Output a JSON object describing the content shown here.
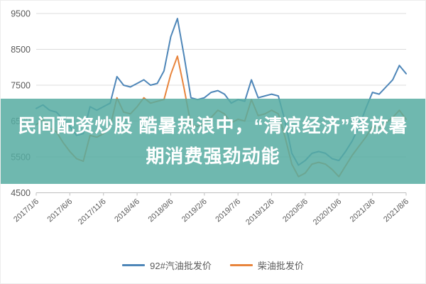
{
  "overlay": {
    "full_text": "民间配资炒股 酷暑热浪中，“清凉经济”释放暑期消费强劲动能",
    "lines": [
      "民间配资炒股 酷暑热浪中，“清凉经济”释放暑",
      "期消费强劲动能"
    ],
    "band_color": "rgba(86,172,161,0.85)",
    "text_color": "#ffffff"
  },
  "chart_data": {
    "type": "line",
    "title": "",
    "grid": true,
    "legend_position": "bottom",
    "ylim": [
      4500,
      9500
    ],
    "y_ticks": [
      4500,
      5500,
      6500,
      7500,
      8500,
      9500
    ],
    "x_tick_labels": [
      "2017/1/6",
      "2017/6/6",
      "2017/11/6",
      "2018/4/6",
      "2018/9/6",
      "2019/2/6",
      "2019/7/6",
      "2019/12/6",
      "2020/5/6",
      "2020/10/6",
      "2021/3/6",
      "2021/8/6"
    ],
    "months_per_point": 1,
    "axis_color": "#bfbfbf",
    "gridline_color": "#dcdcdc",
    "tick_label_color": "#595959",
    "series": [
      {
        "name": "92#汽油批发价",
        "color": "#4e86b8",
        "values": [
          6850,
          6950,
          6800,
          6750,
          6550,
          6350,
          6100,
          6150,
          6900,
          6800,
          6900,
          7000,
          7740,
          7500,
          7450,
          7550,
          7650,
          7500,
          7550,
          7900,
          8850,
          9360,
          8300,
          7150,
          7100,
          7150,
          7300,
          7350,
          7250,
          7000,
          7100,
          7050,
          7650,
          7150,
          7200,
          7250,
          7200,
          6500,
          5600,
          5270,
          5400,
          5600,
          5650,
          5600,
          5450,
          5400,
          5650,
          5950,
          6350,
          6850,
          7300,
          7250,
          7450,
          7650,
          8050,
          7820
        ]
      },
      {
        "name": "柴油批发价",
        "color": "#e8843c",
        "values": [
          6400,
          6550,
          6300,
          6200,
          5900,
          5650,
          5450,
          5380,
          6100,
          6050,
          6150,
          6350,
          7150,
          6750,
          6700,
          6900,
          7150,
          7000,
          7050,
          7100,
          7800,
          8310,
          7400,
          6400,
          6350,
          6450,
          6600,
          6800,
          6700,
          6450,
          6550,
          6500,
          7100,
          6650,
          6700,
          6800,
          6700,
          6050,
          5300,
          4950,
          5050,
          5300,
          5350,
          5300,
          5150,
          4950,
          5250,
          5550,
          5800,
          6050,
          6350,
          6300,
          6450,
          6600,
          6800,
          6550
        ]
      }
    ]
  }
}
